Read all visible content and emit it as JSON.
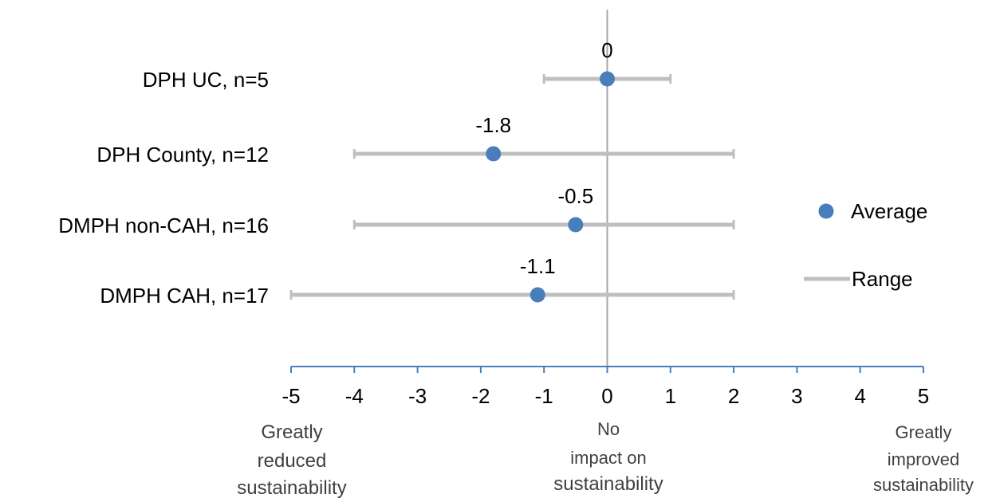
{
  "chart_data": {
    "type": "scatter",
    "categories": [
      "DPH UC, n=5",
      "DPH County, n=12",
      "DMPH non-CAH, n=16",
      "DMPH CAH, n=17"
    ],
    "series": [
      {
        "name": "Average",
        "type": "point",
        "values": [
          0,
          -1.8,
          -0.5,
          -1.1
        ],
        "labels": [
          "0",
          "-1.8",
          "-0.5",
          "-1.1"
        ]
      },
      {
        "name": "Range",
        "type": "range",
        "min": [
          -1,
          -4,
          -4,
          -5
        ],
        "max": [
          1,
          2,
          2,
          2
        ]
      }
    ],
    "xlim": [
      -5,
      5
    ],
    "xticks": [
      "-5",
      "-4",
      "-3",
      "-2",
      "-1",
      "0",
      "1",
      "2",
      "3",
      "4",
      "5"
    ],
    "annotations": {
      "left": [
        "Greatly",
        "reduced",
        "sustainability"
      ],
      "center": [
        "No",
        "impact on",
        "sustainability"
      ],
      "right": [
        "Greatly",
        "improved",
        "sustainability"
      ]
    },
    "legend": {
      "placement": "right",
      "entries": [
        "Average",
        "Range"
      ]
    },
    "colors": {
      "point": "#4a7ebb",
      "range": "#bfbfbf",
      "axis": "#4a7ebb",
      "zero_line": "#a6a6a6"
    }
  }
}
